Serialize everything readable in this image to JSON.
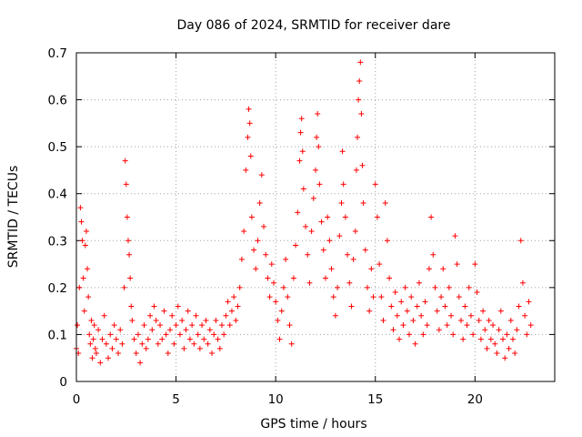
{
  "chart_data": {
    "type": "scatter",
    "title": "Day 086 of 2024, SRMTID for receiver dare",
    "xlabel": "GPS time / hours",
    "ylabel": "SRMTID / TECUs",
    "xlim": [
      0,
      24
    ],
    "ylim": [
      0,
      0.7
    ],
    "x_ticks": [
      0,
      5,
      10,
      15,
      20
    ],
    "x_tick_labels": [
      "0",
      "5",
      "10",
      "15",
      "20"
    ],
    "y_ticks": [
      0,
      0.1,
      0.2,
      0.3,
      0.4,
      0.5,
      0.6,
      0.7
    ],
    "y_tick_labels": [
      "0",
      "0.1",
      "0.2",
      "0.3",
      "0.4",
      "0.5",
      "0.6",
      "0.7"
    ],
    "grid": true,
    "marker": "plus",
    "color": "#ff0000",
    "series": [
      {
        "name": "SRMTID",
        "points": [
          [
            0.0,
            0.07
          ],
          [
            0.05,
            0.12
          ],
          [
            0.1,
            0.06
          ],
          [
            0.15,
            0.2
          ],
          [
            0.2,
            0.37
          ],
          [
            0.25,
            0.34
          ],
          [
            0.3,
            0.3
          ],
          [
            0.35,
            0.22
          ],
          [
            0.4,
            0.15
          ],
          [
            0.45,
            0.29
          ],
          [
            0.5,
            0.32
          ],
          [
            0.55,
            0.24
          ],
          [
            0.6,
            0.18
          ],
          [
            0.65,
            0.1
          ],
          [
            0.7,
            0.08
          ],
          [
            0.75,
            0.13
          ],
          [
            0.8,
            0.05
          ],
          [
            0.85,
            0.09
          ],
          [
            0.9,
            0.12
          ],
          [
            0.95,
            0.07
          ],
          [
            1.0,
            0.06
          ],
          [
            1.1,
            0.11
          ],
          [
            1.2,
            0.04
          ],
          [
            1.3,
            0.09
          ],
          [
            1.4,
            0.14
          ],
          [
            1.5,
            0.08
          ],
          [
            1.6,
            0.05
          ],
          [
            1.7,
            0.1
          ],
          [
            1.8,
            0.07
          ],
          [
            1.9,
            0.12
          ],
          [
            2.0,
            0.09
          ],
          [
            2.1,
            0.06
          ],
          [
            2.2,
            0.11
          ],
          [
            2.3,
            0.08
          ],
          [
            2.4,
            0.2
          ],
          [
            2.45,
            0.47
          ],
          [
            2.5,
            0.42
          ],
          [
            2.55,
            0.35
          ],
          [
            2.6,
            0.3
          ],
          [
            2.65,
            0.27
          ],
          [
            2.7,
            0.22
          ],
          [
            2.75,
            0.16
          ],
          [
            2.8,
            0.13
          ],
          [
            2.9,
            0.09
          ],
          [
            3.0,
            0.06
          ],
          [
            3.1,
            0.1
          ],
          [
            3.2,
            0.04
          ],
          [
            3.3,
            0.08
          ],
          [
            3.4,
            0.12
          ],
          [
            3.5,
            0.07
          ],
          [
            3.6,
            0.09
          ],
          [
            3.7,
            0.14
          ],
          [
            3.8,
            0.11
          ],
          [
            3.9,
            0.16
          ],
          [
            4.0,
            0.13
          ],
          [
            4.1,
            0.08
          ],
          [
            4.2,
            0.12
          ],
          [
            4.3,
            0.09
          ],
          [
            4.4,
            0.15
          ],
          [
            4.5,
            0.1
          ],
          [
            4.6,
            0.06
          ],
          [
            4.7,
            0.11
          ],
          [
            4.8,
            0.14
          ],
          [
            4.9,
            0.08
          ],
          [
            5.0,
            0.12
          ],
          [
            5.1,
            0.16
          ],
          [
            5.2,
            0.1
          ],
          [
            5.3,
            0.13
          ],
          [
            5.4,
            0.07
          ],
          [
            5.5,
            0.11
          ],
          [
            5.6,
            0.15
          ],
          [
            5.7,
            0.09
          ],
          [
            5.8,
            0.12
          ],
          [
            5.9,
            0.08
          ],
          [
            6.0,
            0.14
          ],
          [
            6.1,
            0.1
          ],
          [
            6.2,
            0.07
          ],
          [
            6.3,
            0.12
          ],
          [
            6.4,
            0.09
          ],
          [
            6.5,
            0.13
          ],
          [
            6.6,
            0.08
          ],
          [
            6.7,
            0.11
          ],
          [
            6.8,
            0.06
          ],
          [
            6.9,
            0.1
          ],
          [
            7.0,
            0.13
          ],
          [
            7.1,
            0.09
          ],
          [
            7.2,
            0.07
          ],
          [
            7.3,
            0.12
          ],
          [
            7.4,
            0.1
          ],
          [
            7.5,
            0.14
          ],
          [
            7.6,
            0.17
          ],
          [
            7.7,
            0.12
          ],
          [
            7.8,
            0.15
          ],
          [
            7.9,
            0.18
          ],
          [
            8.0,
            0.13
          ],
          [
            8.1,
            0.16
          ],
          [
            8.2,
            0.2
          ],
          [
            8.3,
            0.26
          ],
          [
            8.4,
            0.32
          ],
          [
            8.5,
            0.45
          ],
          [
            8.6,
            0.52
          ],
          [
            8.65,
            0.58
          ],
          [
            8.7,
            0.55
          ],
          [
            8.75,
            0.48
          ],
          [
            8.8,
            0.35
          ],
          [
            8.9,
            0.28
          ],
          [
            9.0,
            0.24
          ],
          [
            9.1,
            0.3
          ],
          [
            9.2,
            0.38
          ],
          [
            9.3,
            0.44
          ],
          [
            9.4,
            0.33
          ],
          [
            9.5,
            0.27
          ],
          [
            9.6,
            0.22
          ],
          [
            9.7,
            0.18
          ],
          [
            9.8,
            0.25
          ],
          [
            9.9,
            0.21
          ],
          [
            10.0,
            0.17
          ],
          [
            10.1,
            0.13
          ],
          [
            10.2,
            0.09
          ],
          [
            10.3,
            0.15
          ],
          [
            10.4,
            0.2
          ],
          [
            10.5,
            0.26
          ],
          [
            10.6,
            0.18
          ],
          [
            10.7,
            0.12
          ],
          [
            10.8,
            0.08
          ],
          [
            10.9,
            0.22
          ],
          [
            11.0,
            0.29
          ],
          [
            11.1,
            0.36
          ],
          [
            11.2,
            0.47
          ],
          [
            11.25,
            0.53
          ],
          [
            11.3,
            0.56
          ],
          [
            11.35,
            0.49
          ],
          [
            11.4,
            0.41
          ],
          [
            11.5,
            0.33
          ],
          [
            11.6,
            0.27
          ],
          [
            11.7,
            0.21
          ],
          [
            11.8,
            0.32
          ],
          [
            11.9,
            0.39
          ],
          [
            12.0,
            0.45
          ],
          [
            12.05,
            0.52
          ],
          [
            12.1,
            0.57
          ],
          [
            12.15,
            0.5
          ],
          [
            12.2,
            0.42
          ],
          [
            12.3,
            0.34
          ],
          [
            12.4,
            0.28
          ],
          [
            12.5,
            0.22
          ],
          [
            12.6,
            0.35
          ],
          [
            12.7,
            0.3
          ],
          [
            12.8,
            0.24
          ],
          [
            12.9,
            0.18
          ],
          [
            13.0,
            0.14
          ],
          [
            13.1,
            0.2
          ],
          [
            13.2,
            0.31
          ],
          [
            13.3,
            0.38
          ],
          [
            13.35,
            0.49
          ],
          [
            13.4,
            0.42
          ],
          [
            13.5,
            0.35
          ],
          [
            13.6,
            0.27
          ],
          [
            13.7,
            0.21
          ],
          [
            13.8,
            0.16
          ],
          [
            13.9,
            0.26
          ],
          [
            14.0,
            0.32
          ],
          [
            14.05,
            0.45
          ],
          [
            14.1,
            0.52
          ],
          [
            14.15,
            0.6
          ],
          [
            14.2,
            0.64
          ],
          [
            14.25,
            0.68
          ],
          [
            14.3,
            0.57
          ],
          [
            14.35,
            0.46
          ],
          [
            14.4,
            0.38
          ],
          [
            14.5,
            0.28
          ],
          [
            14.6,
            0.2
          ],
          [
            14.7,
            0.15
          ],
          [
            14.8,
            0.24
          ],
          [
            14.9,
            0.18
          ],
          [
            15.0,
            0.42
          ],
          [
            15.1,
            0.35
          ],
          [
            15.2,
            0.25
          ],
          [
            15.3,
            0.18
          ],
          [
            15.4,
            0.13
          ],
          [
            15.5,
            0.38
          ],
          [
            15.6,
            0.3
          ],
          [
            15.7,
            0.22
          ],
          [
            15.8,
            0.16
          ],
          [
            15.9,
            0.11
          ],
          [
            16.0,
            0.19
          ],
          [
            16.1,
            0.14
          ],
          [
            16.2,
            0.09
          ],
          [
            16.3,
            0.17
          ],
          [
            16.4,
            0.12
          ],
          [
            16.5,
            0.2
          ],
          [
            16.6,
            0.15
          ],
          [
            16.7,
            0.1
          ],
          [
            16.8,
            0.18
          ],
          [
            16.9,
            0.13
          ],
          [
            17.0,
            0.08
          ],
          [
            17.1,
            0.16
          ],
          [
            17.2,
            0.21
          ],
          [
            17.3,
            0.14
          ],
          [
            17.4,
            0.1
          ],
          [
            17.5,
            0.17
          ],
          [
            17.6,
            0.12
          ],
          [
            17.7,
            0.24
          ],
          [
            17.8,
            0.35
          ],
          [
            17.9,
            0.27
          ],
          [
            18.0,
            0.2
          ],
          [
            18.1,
            0.15
          ],
          [
            18.2,
            0.11
          ],
          [
            18.3,
            0.18
          ],
          [
            18.4,
            0.24
          ],
          [
            18.5,
            0.16
          ],
          [
            18.6,
            0.12
          ],
          [
            18.7,
            0.2
          ],
          [
            18.8,
            0.14
          ],
          [
            18.9,
            0.1
          ],
          [
            19.0,
            0.31
          ],
          [
            19.1,
            0.25
          ],
          [
            19.2,
            0.18
          ],
          [
            19.3,
            0.13
          ],
          [
            19.4,
            0.09
          ],
          [
            19.5,
            0.16
          ],
          [
            19.6,
            0.12
          ],
          [
            19.7,
            0.2
          ],
          [
            19.8,
            0.14
          ],
          [
            19.9,
            0.1
          ],
          [
            20.0,
            0.25
          ],
          [
            20.1,
            0.19
          ],
          [
            20.2,
            0.13
          ],
          [
            20.3,
            0.09
          ],
          [
            20.4,
            0.15
          ],
          [
            20.5,
            0.11
          ],
          [
            20.6,
            0.07
          ],
          [
            20.7,
            0.13
          ],
          [
            20.8,
            0.09
          ],
          [
            20.9,
            0.12
          ],
          [
            21.0,
            0.08
          ],
          [
            21.1,
            0.06
          ],
          [
            21.2,
            0.11
          ],
          [
            21.3,
            0.15
          ],
          [
            21.4,
            0.09
          ],
          [
            21.5,
            0.05
          ],
          [
            21.6,
            0.1
          ],
          [
            21.7,
            0.07
          ],
          [
            21.8,
            0.13
          ],
          [
            21.9,
            0.09
          ],
          [
            22.0,
            0.06
          ],
          [
            22.1,
            0.11
          ],
          [
            22.2,
            0.16
          ],
          [
            22.3,
            0.3
          ],
          [
            22.4,
            0.21
          ],
          [
            22.5,
            0.14
          ],
          [
            22.6,
            0.1
          ],
          [
            22.7,
            0.17
          ],
          [
            22.8,
            0.12
          ]
        ]
      }
    ]
  }
}
